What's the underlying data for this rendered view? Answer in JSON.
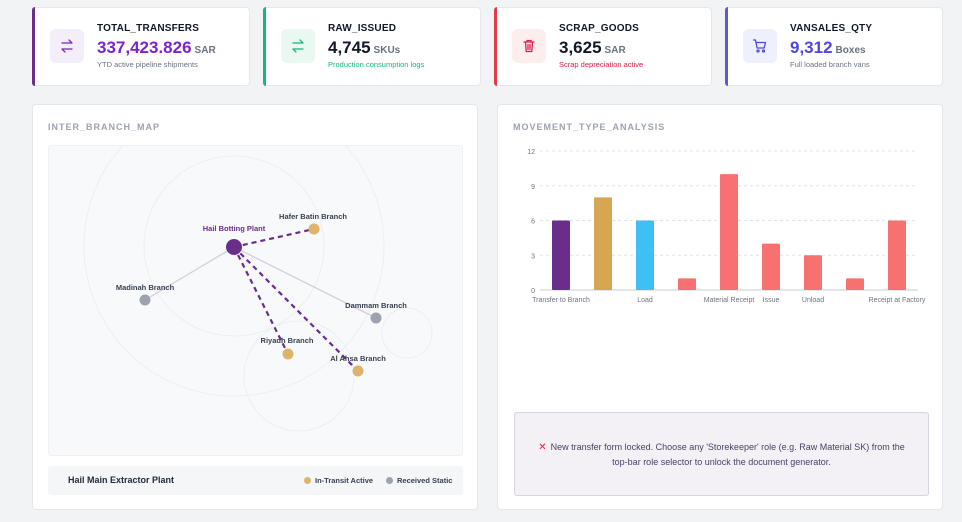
{
  "kpis": [
    {
      "title": "TOTAL_TRANSFERS",
      "value": "337,423.826",
      "unit": "SAR",
      "subtitle": "YTD active pipeline shipments",
      "accent": "#6b2d8a",
      "value_color": "#7e22ce",
      "subtitle_color": "#6b7280",
      "icon_bg": "#f4eefa",
      "icon": "transfer-icon"
    },
    {
      "title": "RAW_ISSUED",
      "value": "4,745",
      "unit": "SKUs",
      "subtitle": "Production consumption logs",
      "accent": "#10b981",
      "value_color": "#111827",
      "subtitle_color": "#10b981",
      "icon_bg": "#e9f8f1",
      "icon": "transfer-icon"
    },
    {
      "title": "SCRAP_GOODS",
      "value": "3,625",
      "unit": "SAR",
      "subtitle": "Scrap depreciation active",
      "accent": "#e63946",
      "value_color": "#111827",
      "subtitle_color": "#e11d48",
      "icon_bg": "#fdeeee",
      "icon": "trash-icon"
    },
    {
      "title": "VANSALES_QTY",
      "value": "9,312",
      "unit": "Boxes",
      "subtitle": "Full loaded branch vans",
      "accent": "#5b5bd6",
      "value_color": "#4f46e5",
      "subtitle_color": "#6b7280",
      "icon_bg": "#eef0fd",
      "icon": "cart-icon"
    }
  ],
  "map": {
    "title": "INTER_BRANCH_MAP",
    "nodes": {
      "hail": "Hail Botting Plant",
      "hafer": "Hafer Batin Branch",
      "madinah": "Madinah Branch",
      "dammam": "Dammam Branch",
      "riyadh": "Riyadh Branch",
      "alahsa": "Al Ahsa Branch"
    },
    "footer_name": "Hail Main Extractor Plant",
    "legend": {
      "in_transit": "In-Transit Active",
      "received": "Received Static"
    },
    "colors": {
      "hub": "#6b2d8a",
      "in_transit": "#e0b36a",
      "received": "#9ca3af"
    }
  },
  "movement": {
    "title": "MOVEMENT_TYPE_ANALYSIS",
    "alert": "New transfer form locked. Choose any 'Storekeeper' role (e.g. Raw Material SK) from the top-bar role selector to unlock the document generator."
  },
  "chart_data": {
    "type": "bar",
    "categories": [
      "Transfer to Branch",
      "",
      "Load",
      "",
      "Material Receipt",
      "Issue",
      "Unload",
      "",
      "Receipt at Factory"
    ],
    "values": [
      6,
      8,
      6,
      1,
      10,
      4,
      3,
      1,
      6
    ],
    "colors": [
      "#6b2d8a",
      "#d6a653",
      "#3ec0f5",
      "#f87171",
      "#f87171",
      "#f87171",
      "#f87171",
      "#f87171",
      "#f87171"
    ],
    "yticks": [
      0,
      3,
      6,
      9,
      12
    ],
    "ylim": [
      0,
      12
    ],
    "grid": true,
    "title": "",
    "xlabel": "",
    "ylabel": ""
  }
}
